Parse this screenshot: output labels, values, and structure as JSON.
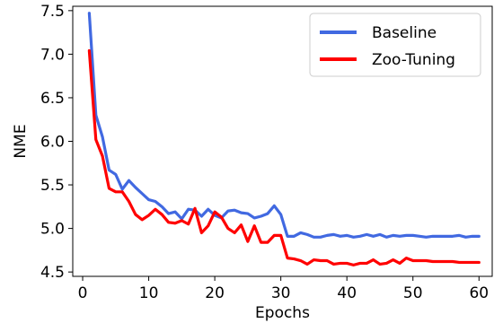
{
  "chart_data": {
    "type": "line",
    "title": "",
    "xlabel": "Epochs",
    "ylabel": "NME",
    "xlim": [
      -1.5,
      62
    ],
    "ylim": [
      4.45,
      7.55
    ],
    "xticks": [
      0,
      10,
      20,
      30,
      40,
      50,
      60
    ],
    "yticks": [
      4.5,
      5.0,
      5.5,
      6.0,
      6.5,
      7.0,
      7.5
    ],
    "ytick_labels": [
      "4.5",
      "5.0",
      "5.5",
      "6.0",
      "6.5",
      "7.0",
      "7.5"
    ],
    "grid": false,
    "legend_position": "upper right",
    "x": [
      1,
      2,
      3,
      4,
      5,
      6,
      7,
      8,
      9,
      10,
      11,
      12,
      13,
      14,
      15,
      16,
      17,
      18,
      19,
      20,
      21,
      22,
      23,
      24,
      25,
      26,
      27,
      28,
      29,
      30,
      31,
      32,
      33,
      34,
      35,
      36,
      37,
      38,
      39,
      40,
      41,
      42,
      43,
      44,
      45,
      46,
      47,
      48,
      49,
      50,
      51,
      52,
      53,
      54,
      55,
      56,
      57,
      58,
      59,
      60
    ],
    "series": [
      {
        "name": "Baseline",
        "color": "#4169e1",
        "values": [
          7.47,
          6.3,
          6.05,
          5.67,
          5.62,
          5.45,
          5.55,
          5.47,
          5.4,
          5.33,
          5.31,
          5.25,
          5.17,
          5.19,
          5.11,
          5.22,
          5.21,
          5.14,
          5.22,
          5.15,
          5.12,
          5.2,
          5.21,
          5.18,
          5.17,
          5.12,
          5.14,
          5.17,
          5.26,
          5.16,
          4.91,
          4.91,
          4.95,
          4.93,
          4.9,
          4.9,
          4.92,
          4.93,
          4.91,
          4.92,
          4.9,
          4.91,
          4.93,
          4.91,
          4.93,
          4.9,
          4.92,
          4.91,
          4.92,
          4.92,
          4.91,
          4.9,
          4.91,
          4.91,
          4.91,
          4.91,
          4.92,
          4.9,
          4.91,
          4.91
        ]
      },
      {
        "name": "Zoo-Tuning",
        "color": "#ff0000",
        "values": [
          7.04,
          6.02,
          5.83,
          5.46,
          5.42,
          5.42,
          5.31,
          5.16,
          5.1,
          5.15,
          5.22,
          5.16,
          5.07,
          5.06,
          5.09,
          5.05,
          5.23,
          4.95,
          5.03,
          5.19,
          5.13,
          5.0,
          4.95,
          5.04,
          4.85,
          5.03,
          4.84,
          4.84,
          4.92,
          4.92,
          4.66,
          4.65,
          4.63,
          4.59,
          4.64,
          4.63,
          4.63,
          4.59,
          4.6,
          4.6,
          4.58,
          4.6,
          4.6,
          4.64,
          4.59,
          4.6,
          4.64,
          4.6,
          4.66,
          4.63,
          4.63,
          4.63,
          4.62,
          4.62,
          4.62,
          4.62,
          4.61,
          4.61,
          4.61,
          4.61
        ]
      }
    ]
  }
}
